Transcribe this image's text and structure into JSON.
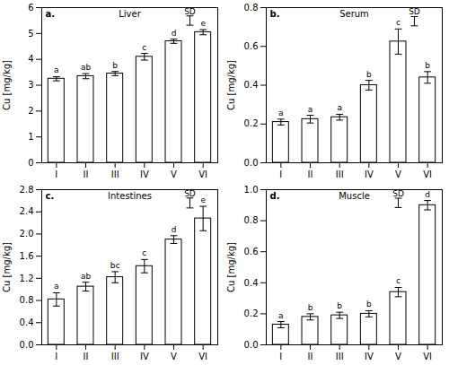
{
  "chart_data": [
    {
      "type": "bar",
      "label": "a.",
      "title": "Liver",
      "ylabel": "Cu [mg/kg]",
      "categories": [
        "I",
        "II",
        "III",
        "IV",
        "V",
        "VI"
      ],
      "values": [
        3.25,
        3.35,
        3.45,
        4.1,
        4.7,
        5.05
      ],
      "errors": [
        0.08,
        0.1,
        0.08,
        0.13,
        0.08,
        0.1
      ],
      "letters": [
        "a",
        "ab",
        "b",
        "c",
        "d",
        "e"
      ],
      "ylim": [
        0,
        6
      ],
      "yticks": [
        0,
        1,
        2,
        3,
        4,
        5,
        6
      ],
      "color": "#ffffff",
      "sd_bar": {
        "x": 4.55,
        "center": 5.5,
        "half": 0.18,
        "label": "SD"
      }
    },
    {
      "type": "bar",
      "label": "b.",
      "title": "Serum",
      "ylabel": "Cu [mg/kg]",
      "categories": [
        "I",
        "II",
        "III",
        "IV",
        "V",
        "VI"
      ],
      "values": [
        0.21,
        0.225,
        0.235,
        0.4,
        0.625,
        0.44
      ],
      "errors": [
        0.015,
        0.02,
        0.015,
        0.025,
        0.065,
        0.03
      ],
      "letters": [
        "a",
        "a",
        "a",
        "b",
        "c",
        "b"
      ],
      "ylim": [
        0,
        0.8
      ],
      "yticks": [
        {
          "value": 0,
          "label": "0.0"
        },
        0.2,
        0.4,
        0.6,
        0.8
      ],
      "color": "#ffffff",
      "sd_bar": {
        "x": 4.55,
        "center": 0.73,
        "half": 0.024,
        "label": "SD"
      }
    },
    {
      "type": "bar",
      "label": "c.",
      "title": "Intestines",
      "ylabel": "Cu [mg/kg]",
      "categories": [
        "I",
        "II",
        "III",
        "IV",
        "V",
        "VI"
      ],
      "values": [
        0.82,
        1.05,
        1.22,
        1.42,
        1.9,
        2.28
      ],
      "errors": [
        0.12,
        0.08,
        0.1,
        0.12,
        0.07,
        0.22
      ],
      "letters": [
        "a",
        "ab",
        "bc",
        "c",
        "d",
        "e"
      ],
      "ylim": [
        0,
        2.8
      ],
      "yticks": [
        {
          "value": 0,
          "label": "0.0"
        },
        0.4,
        0.8,
        1.2,
        1.6,
        {
          "value": 2,
          "label": "2.0"
        },
        2.4,
        2.8
      ],
      "color": "#ffffff",
      "sd_bar": {
        "x": 4.55,
        "center": 2.56,
        "half": 0.09,
        "label": "SD"
      }
    },
    {
      "type": "bar",
      "label": "d.",
      "title": "Muscle",
      "ylabel": "Cu [mg/kg]",
      "categories": [
        "I",
        "II",
        "III",
        "IV",
        "V",
        "VI"
      ],
      "values": [
        0.13,
        0.18,
        0.19,
        0.2,
        0.34,
        0.9
      ],
      "errors": [
        0.02,
        0.02,
        0.02,
        0.02,
        0.03,
        0.03
      ],
      "letters": [
        "a",
        "b",
        "b",
        "b",
        "c",
        "d"
      ],
      "ylim": [
        0,
        1.0
      ],
      "yticks": [
        {
          "value": 0,
          "label": "0.0"
        },
        0.2,
        0.4,
        0.6,
        0.8,
        {
          "value": 1,
          "label": "1.0"
        }
      ],
      "color": "#ffffff",
      "sd_bar": {
        "x": 4.0,
        "center": 0.915,
        "half": 0.03,
        "label": "SD"
      }
    }
  ]
}
